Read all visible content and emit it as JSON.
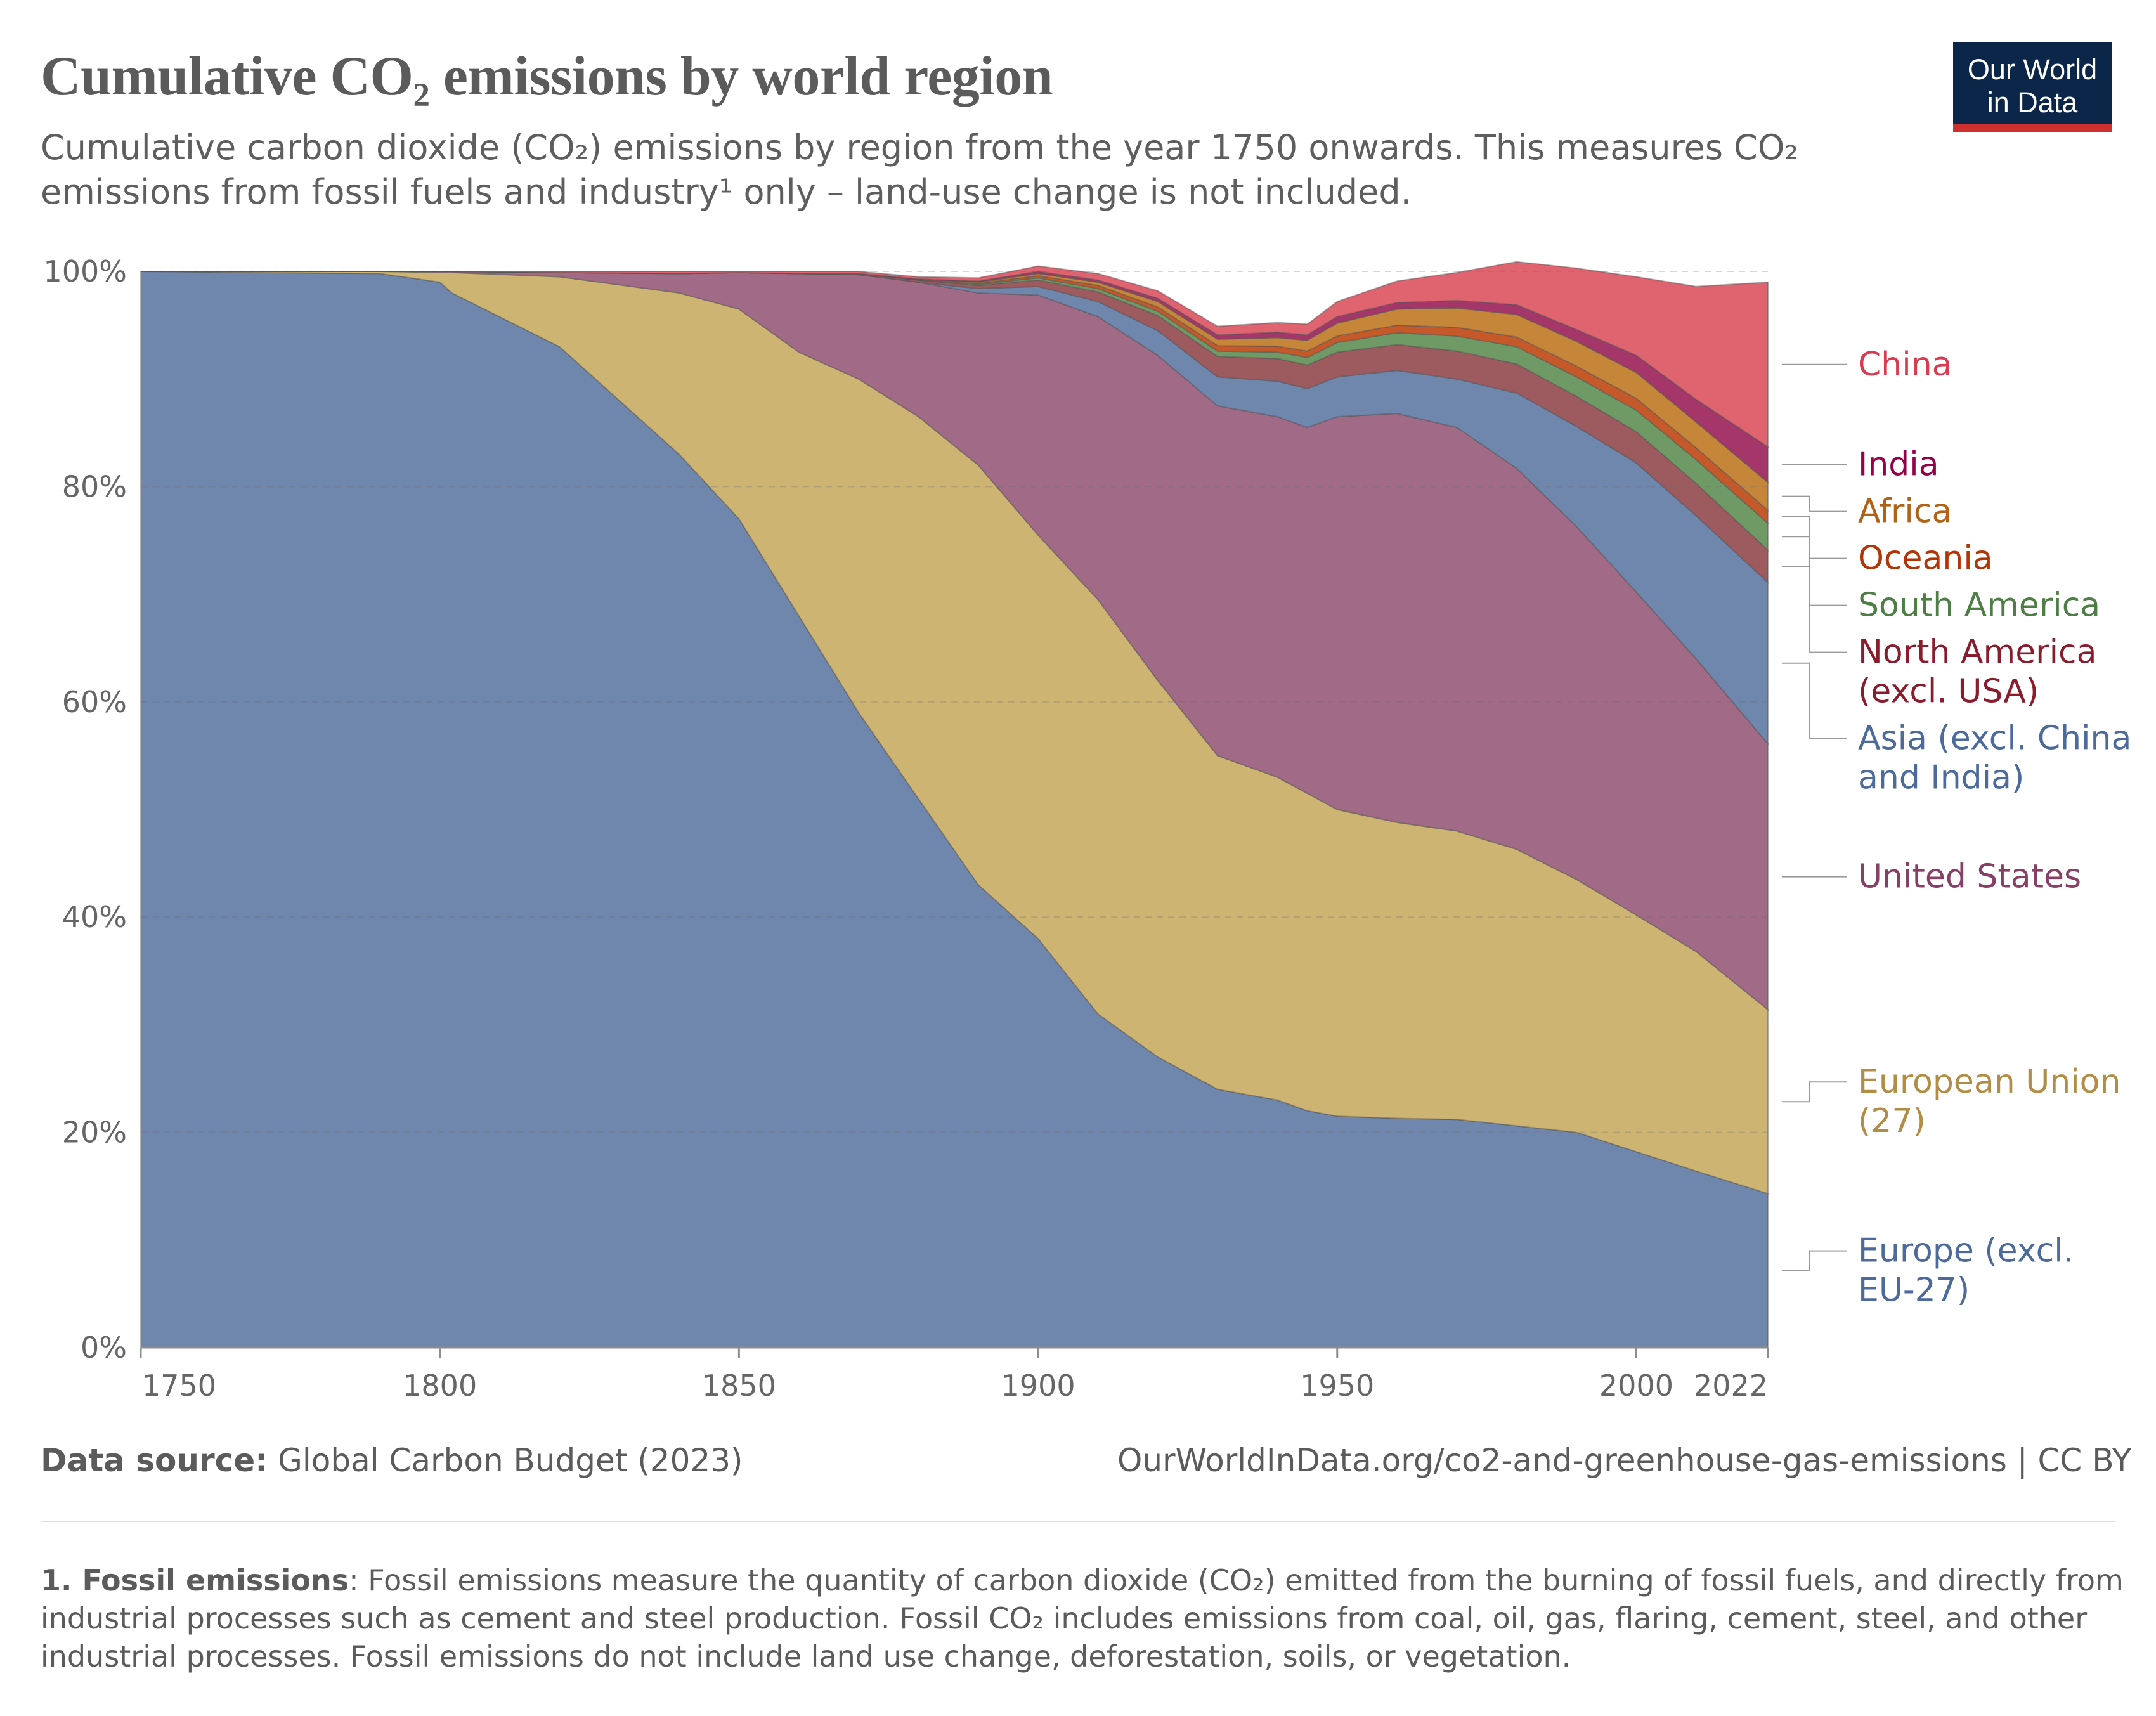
{
  "header": {
    "title": "Cumulative CO₂ emissions by world region",
    "subtitle": "Cumulative carbon dioxide (CO₂) emissions by region from the year 1750 onwards. This measures CO₂ emissions from fossil fuels and industry¹ only – land-use change is not included."
  },
  "logo": {
    "line1": "Our World",
    "line2": "in Data",
    "bg_color": "#0c2649",
    "accent_color": "#ce2f2f"
  },
  "chart_data": {
    "type": "area",
    "stacked": true,
    "relative": true,
    "x": [
      1750,
      1790,
      1800,
      1802,
      1820,
      1840,
      1850,
      1860,
      1870,
      1880,
      1890,
      1900,
      1910,
      1920,
      1930,
      1940,
      1945,
      1950,
      1960,
      1970,
      1980,
      1990,
      2000,
      2010,
      2022
    ],
    "yticks": [
      "0%",
      "20%",
      "40%",
      "60%",
      "80%",
      "100%"
    ],
    "xticks": [
      "1750",
      "1800",
      "1850",
      "1900",
      "1950",
      "2000",
      "2022"
    ],
    "ylim": [
      0,
      100
    ],
    "grid": true,
    "legend_placement": "right",
    "series": [
      {
        "name": "Europe (excl. EU-27)",
        "label_lines": [
          "Europe (excl.",
          "EU-27)"
        ],
        "color": "#6f86ad",
        "label_color": "#4c6a9c",
        "values": [
          100,
          99.8,
          99,
          98,
          93,
          83,
          77,
          68,
          59,
          51,
          43,
          38,
          31,
          27,
          24,
          23,
          22,
          21.5,
          21.3,
          21.2,
          20.6,
          20,
          18.2,
          16.4,
          14.3
        ]
      },
      {
        "name": "European Union (27)",
        "label_lines": [
          "European Union",
          "(27)"
        ],
        "color": "#cdb473",
        "label_color": "#b28d45",
        "values": [
          0,
          0.2,
          0.9,
          1.9,
          6.5,
          15,
          19.5,
          24.5,
          31,
          35.5,
          39,
          37.5,
          38.5,
          35,
          31,
          30,
          29.5,
          28.5,
          27.5,
          26.8,
          25.7,
          23.5,
          22,
          20.4,
          17.1
        ]
      },
      {
        "name": "United States",
        "label_lines": [
          "United States"
        ],
        "color": "#a16a86",
        "label_color": "#883f66",
        "values": [
          0,
          0,
          0.1,
          0.1,
          0.4,
          1.8,
          3.4,
          7.3,
          9.7,
          12.5,
          16,
          22.3,
          26.3,
          30.2,
          32.5,
          33.5,
          34,
          36.5,
          38,
          37.5,
          35.4,
          32.8,
          30,
          27.2,
          24.7
        ]
      },
      {
        "name": "Asia (excl. China and India)",
        "label_lines": [
          "Asia (excl. China",
          "and India)"
        ],
        "color": "#6f86ad",
        "label_color": "#4c6a9c",
        "values": [
          0,
          0,
          0,
          0,
          0,
          0,
          0,
          0,
          0,
          0,
          0.4,
          0.8,
          1.4,
          2.3,
          2.7,
          3.3,
          3.6,
          3.7,
          4,
          4.5,
          7,
          9.3,
          12,
          13.3,
          15
        ]
      },
      {
        "name": "North America (excl. USA)",
        "label_lines": [
          "North America",
          "(excl. USA)"
        ],
        "color": "#9d5a5f",
        "label_color": "#891d2d",
        "values": [
          0,
          0,
          0,
          0,
          0,
          0,
          0,
          0,
          0.1,
          0.2,
          0.3,
          0.6,
          0.9,
          1.4,
          1.9,
          2.1,
          2.2,
          2.3,
          2.4,
          2.6,
          2.7,
          2.8,
          2.9,
          3,
          3
        ]
      },
      {
        "name": "South America",
        "label_lines": [
          "South America"
        ],
        "color": "#6f9a65",
        "label_color": "#4e7e46",
        "values": [
          0,
          0,
          0,
          0,
          0,
          0,
          0,
          0,
          0,
          0,
          0.1,
          0.2,
          0.3,
          0.4,
          0.5,
          0.6,
          0.7,
          0.9,
          1.1,
          1.4,
          1.6,
          1.8,
          2,
          2.2,
          2.5
        ]
      },
      {
        "name": "Oceania",
        "label_lines": [
          "Oceania"
        ],
        "color": "#c6592a",
        "label_color": "#b13507",
        "values": [
          0,
          0,
          0,
          0,
          0,
          0,
          0,
          0,
          0,
          0,
          0.1,
          0.2,
          0.3,
          0.4,
          0.5,
          0.55,
          0.6,
          0.6,
          0.7,
          0.8,
          0.9,
          1,
          1.1,
          1.1,
          1.2
        ]
      },
      {
        "name": "Africa",
        "label_lines": [
          "Africa"
        ],
        "color": "#c6863a",
        "label_color": "#b16214",
        "values": [
          0,
          0,
          0,
          0,
          0,
          0,
          0,
          0,
          0,
          0,
          0.1,
          0.2,
          0.3,
          0.5,
          0.6,
          0.8,
          1,
          1.2,
          1.5,
          1.8,
          2.1,
          2.3,
          2.4,
          2.4,
          2.6
        ]
      },
      {
        "name": "India",
        "label_lines": [
          "India"
        ],
        "color": "#a43669",
        "label_color": "#970046",
        "values": [
          0,
          0,
          0,
          0,
          0,
          0,
          0,
          0,
          0,
          0.1,
          0.1,
          0.2,
          0.2,
          0.3,
          0.4,
          0.5,
          0.5,
          0.6,
          0.6,
          0.7,
          0.9,
          1.1,
          1.6,
          2.1,
          3.3
        ]
      },
      {
        "name": "China",
        "label_lines": [
          "China"
        ],
        "color": "#e06370",
        "label_color": "#d73c50",
        "values": [
          0,
          0,
          0,
          0,
          0.1,
          0.2,
          0.1,
          0.2,
          0.2,
          0.2,
          0.3,
          0.5,
          0.6,
          0.7,
          0.8,
          0.9,
          1,
          1.4,
          2,
          2.6,
          4,
          5.7,
          7.3,
          10.5,
          15.3
        ]
      }
    ]
  },
  "footer": {
    "source_label": "Data source:",
    "source_value": "Global Carbon Budget (2023)",
    "url": "OurWorldInData.org/co2-and-greenhouse-gas-emissions | CC BY",
    "footnote_label": "1. Fossil emissions",
    "footnote_text": ": Fossil emissions measure the quantity of carbon dioxide (CO₂) emitted from the burning of fossil fuels, and directly from industrial processes such as cement and steel production. Fossil CO₂ includes emissions from coal, oil, gas, flaring, cement, steel, and other industrial processes. Fossil emissions do not include land use change, deforestation, soils, or vegetation."
  }
}
